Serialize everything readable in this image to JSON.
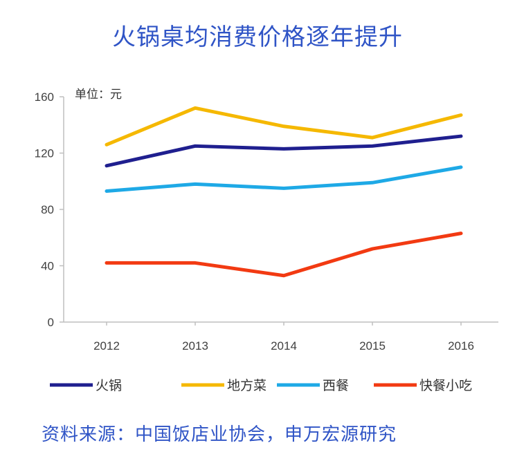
{
  "title": "火锅桌均消费价格逐年提升",
  "source": "资料来源：中国饭店业协会，申万宏源研究",
  "chart_data": {
    "type": "line",
    "title": "火锅桌均消费价格逐年提升",
    "unit_label": "单位：元",
    "x": [
      "2012",
      "2013",
      "2014",
      "2015",
      "2016"
    ],
    "ylim": [
      0,
      160
    ],
    "yticks": [
      0,
      40,
      80,
      120,
      160
    ],
    "legend_position": "bottom",
    "grid": false,
    "series": [
      {
        "name": "火锅",
        "color": "#1f1f8f",
        "values": [
          111,
          125,
          123,
          125,
          132
        ]
      },
      {
        "name": "地方菜",
        "color": "#f5b800",
        "values": [
          126,
          152,
          139,
          131,
          147
        ]
      },
      {
        "name": "西餐",
        "color": "#1ea9e6",
        "values": [
          93,
          98,
          95,
          99,
          110
        ]
      },
      {
        "name": "快餐小吃",
        "color": "#f23a12",
        "values": [
          42,
          42,
          33,
          52,
          63
        ]
      }
    ]
  }
}
